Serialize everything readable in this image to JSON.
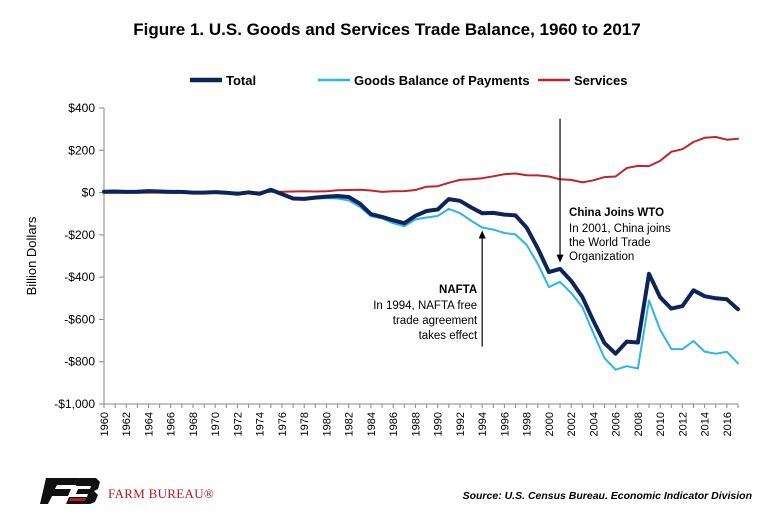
{
  "chart_data": {
    "type": "line",
    "title": "Figure 1. U.S. Goods and Services Trade Balance, 1960 to 2017",
    "xlabel": "",
    "ylabel": "Billion Dollars",
    "ylim": [
      -1000,
      400
    ],
    "xlim": [
      1960,
      2017
    ],
    "yticks": [
      400,
      200,
      0,
      -200,
      -400,
      -600,
      -800,
      -1000
    ],
    "ytick_labels": [
      "$400",
      "$200",
      "$0",
      "-$200",
      "-$400",
      "-$600",
      "-$800",
      "-$1,000"
    ],
    "xticks": [
      1960,
      1962,
      1964,
      1966,
      1968,
      1970,
      1972,
      1974,
      1976,
      1978,
      1980,
      1982,
      1984,
      1986,
      1988,
      1990,
      1992,
      1994,
      1996,
      1998,
      2000,
      2002,
      2004,
      2006,
      2008,
      2010,
      2012,
      2014,
      2016
    ],
    "xtick_labels": [
      "1960",
      "1962",
      "1964",
      "1966",
      "1968",
      "1970",
      "1972",
      "1974",
      "1976",
      "1978",
      "1980",
      "1982",
      "1984",
      "1986",
      "1988",
      "1990",
      "1992",
      "1994",
      "1996",
      "1998",
      "2000",
      "2002",
      "2004",
      "2006",
      "2008",
      "2010",
      "2012",
      "2014",
      "2016"
    ],
    "grid": false,
    "legend_position": "top",
    "x": [
      1960,
      1961,
      1962,
      1963,
      1964,
      1965,
      1966,
      1967,
      1968,
      1969,
      1970,
      1971,
      1972,
      1973,
      1974,
      1975,
      1976,
      1977,
      1978,
      1979,
      1980,
      1981,
      1982,
      1983,
      1984,
      1985,
      1986,
      1987,
      1988,
      1989,
      1990,
      1991,
      1992,
      1993,
      1994,
      1995,
      1996,
      1997,
      1998,
      1999,
      2000,
      2001,
      2002,
      2003,
      2004,
      2005,
      2006,
      2007,
      2008,
      2009,
      2010,
      2011,
      2012,
      2013,
      2014,
      2015,
      2016,
      2017
    ],
    "series": [
      {
        "name": "Total",
        "color": "#0d2459",
        "width": 4,
        "values": [
          4,
          5,
          3,
          4,
          7,
          5,
          3,
          3,
          0,
          0,
          2,
          -1,
          -6,
          1,
          -6,
          13,
          -7,
          -28,
          -30,
          -24,
          -19,
          -16,
          -21,
          -52,
          -102,
          -115,
          -131,
          -145,
          -110,
          -87,
          -80,
          -31,
          -39,
          -70,
          -98,
          -96,
          -104,
          -108,
          -166,
          -264,
          -376,
          -361,
          -418,
          -493,
          -607,
          -712,
          -762,
          -705,
          -709,
          -384,
          -495,
          -549,
          -537,
          -462,
          -490,
          -500,
          -505,
          -552
        ]
      },
      {
        "name": "Goods Balance of Payments",
        "color": "#29b6ea",
        "width": 2,
        "values": [
          5,
          6,
          4,
          5,
          7,
          5,
          4,
          4,
          1,
          1,
          3,
          -2,
          -6,
          -1,
          -5,
          9,
          -9,
          -31,
          -34,
          -28,
          -26,
          -28,
          -37,
          -67,
          -112,
          -122,
          -145,
          -159,
          -127,
          -118,
          -111,
          -77,
          -97,
          -133,
          -165,
          -175,
          -191,
          -198,
          -248,
          -337,
          -447,
          -422,
          -475,
          -541,
          -665,
          -783,
          -838,
          -821,
          -832,
          -510,
          -649,
          -740,
          -741,
          -702,
          -752,
          -762,
          -753,
          -808
        ]
      },
      {
        "name": "Services",
        "color": "#c0232a",
        "width": 2,
        "values": [
          -1,
          -1,
          0,
          -1,
          0,
          0,
          -1,
          -1,
          0,
          -1,
          0,
          1,
          0,
          2,
          1,
          4,
          4,
          5,
          6,
          5,
          6,
          11,
          12,
          13,
          10,
          3,
          6,
          7,
          12,
          28,
          30,
          46,
          60,
          63,
          68,
          77,
          87,
          90,
          82,
          81,
          76,
          63,
          60,
          48,
          58,
          73,
          76,
          116,
          126,
          125,
          150,
          193,
          205,
          239,
          259,
          263,
          250,
          255
        ]
      }
    ]
  },
  "annotations": {
    "nafta": {
      "title": "NAFTA",
      "lines": [
        "In 1994, NAFTA free",
        "trade agreement",
        "takes effect"
      ],
      "x": 1994,
      "y": -170
    },
    "china": {
      "title": "China Joins WTO",
      "lines": [
        "In 2001, China joins",
        "the World Trade",
        "Organization"
      ],
      "x": 2001,
      "y": -360
    }
  },
  "footer": {
    "brand": "FARM BUREAU®",
    "source": "Source: U.S. Census Bureau. Economic Indicator Division"
  },
  "colors": {
    "logo_black": "#111111",
    "logo_red": "#b01c20"
  }
}
